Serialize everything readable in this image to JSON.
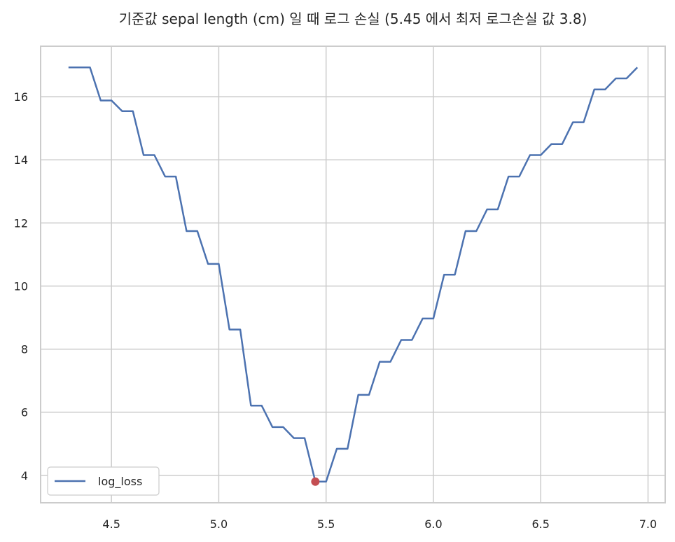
{
  "chart_data": {
    "type": "line",
    "title": "기준값 sepal length (cm) 일 때 로그 손실 (5.45 에서 최저 로그손실 값 3.8)",
    "xlabel": "",
    "ylabel": "",
    "xlim": [
      4.17,
      7.08
    ],
    "ylim": [
      3.13,
      17.6
    ],
    "grid": true,
    "legend_position": "lower-left",
    "x_ticks": [
      4.5,
      5.0,
      5.5,
      6.0,
      6.5,
      7.0
    ],
    "x_tick_labels": [
      "4.5",
      "5.0",
      "5.5",
      "6.0",
      "6.5",
      "7.0"
    ],
    "y_ticks": [
      4,
      6,
      8,
      10,
      12,
      14,
      16
    ],
    "y_tick_labels": [
      "4",
      "6",
      "8",
      "10",
      "12",
      "14",
      "16"
    ],
    "series": [
      {
        "name": "log_loss",
        "color": "#4c72b0",
        "x": [
          4.3,
          4.35,
          4.4,
          4.45,
          4.5,
          4.55,
          4.6,
          4.65,
          4.7,
          4.75,
          4.8,
          4.85,
          4.9,
          4.95,
          5.0,
          5.05,
          5.1,
          5.15,
          5.2,
          5.25,
          5.3,
          5.35,
          5.4,
          5.45,
          5.5,
          5.55,
          5.6,
          5.65,
          5.7,
          5.75,
          5.8,
          5.85,
          5.9,
          5.95,
          6.0,
          6.05,
          6.1,
          6.15,
          6.2,
          6.25,
          6.3,
          6.35,
          6.4,
          6.45,
          6.5,
          6.55,
          6.6,
          6.65,
          6.7,
          6.75,
          6.8,
          6.85,
          6.9,
          6.95
        ],
        "y": [
          16.93,
          16.93,
          16.93,
          15.88,
          15.88,
          15.54,
          15.54,
          14.15,
          14.15,
          13.47,
          13.47,
          11.74,
          11.74,
          10.7,
          10.7,
          8.62,
          8.62,
          6.21,
          6.21,
          5.53,
          5.53,
          5.18,
          5.18,
          3.8,
          3.8,
          4.84,
          4.84,
          6.55,
          6.55,
          7.6,
          7.6,
          8.29,
          8.29,
          8.97,
          8.97,
          10.36,
          10.36,
          11.74,
          11.74,
          12.43,
          12.43,
          13.47,
          13.47,
          14.15,
          14.15,
          14.5,
          14.5,
          15.19,
          15.19,
          16.23,
          16.23,
          16.58,
          16.58,
          16.93
        ]
      }
    ],
    "highlight_point": {
      "x": 5.45,
      "y": 3.8,
      "color": "#c44e52"
    }
  }
}
